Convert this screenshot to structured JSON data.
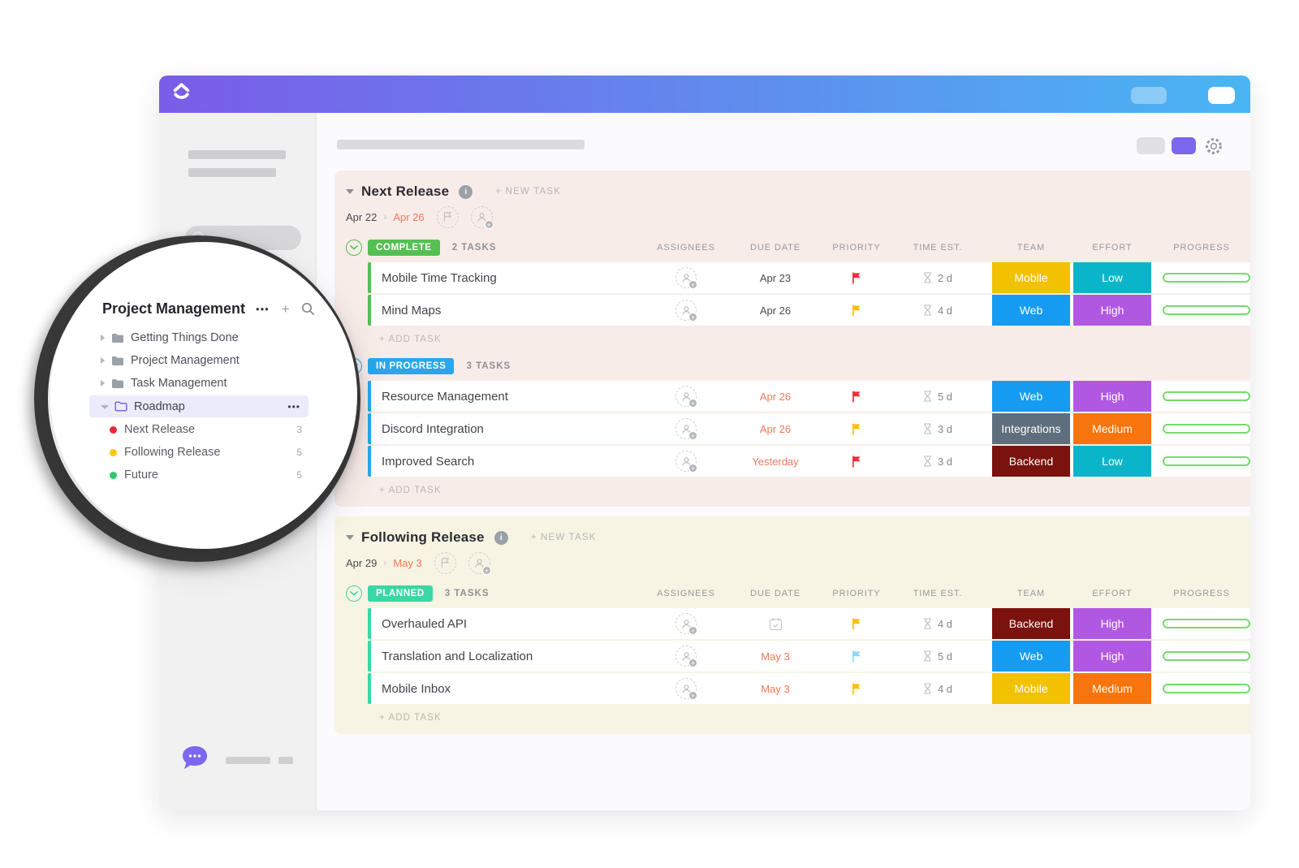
{
  "titlebar": {
    "app": "clickup"
  },
  "toolbar": {
    "columns": [
      "ASSIGNEES",
      "DUE DATE",
      "PRIORITY",
      "TIME EST.",
      "TEAM",
      "EFFORT",
      "PROGRESS"
    ]
  },
  "colors": {
    "gradient_left": "#7a5ce8",
    "gradient_right": "#49b6f3",
    "section1_bg": "#f8ece9",
    "section2_bg": "#f7f4e3",
    "accent_purple": "#7b68ee",
    "overdue_orange": "#f4765a",
    "progress_green": "#77d96e",
    "priority": {
      "red": "#f12c3e",
      "yellow": "#fcc002",
      "blue": "#8ed8f8"
    }
  },
  "magnifier": {
    "title": "Project Management",
    "menu_dots": "•••",
    "plus": "+",
    "folders": [
      "Getting Things Done",
      "Project Management",
      "Task Management"
    ],
    "selected_folder": {
      "label": "Roadmap",
      "menu_dots": "•••",
      "folder_color": "#7b68ee",
      "highlight": "#ecebfb"
    },
    "lists": [
      {
        "label": "Next Release",
        "count": "3",
        "dot_color": "#e8283c"
      },
      {
        "label": "Following Release",
        "count": "5",
        "dot_color": "#fdc800"
      },
      {
        "label": "Future",
        "count": "5",
        "dot_color": "#2bc96d"
      }
    ]
  },
  "sections": [
    {
      "title": "Next Release",
      "new_task_label": "+ NEW TASK",
      "date_start": "Apr 22",
      "date_sep": "›",
      "date_end": "Apr 26",
      "bg": "#f8ece9",
      "groups": [
        {
          "badge": "COMPLETE",
          "badge_color": "#54c053",
          "tasks_label": "2 TASKS",
          "show_headers": true,
          "add_task_label": "+ ADD TASK",
          "rows": [
            {
              "name": "Mobile Time Tracking",
              "due": "Apr 23",
              "due_orange": false,
              "priority": "red",
              "time": "2 d",
              "team": {
                "label": "Mobile",
                "color": "#f2c100"
              },
              "effort": {
                "label": "Low",
                "color": "#0bb5c9"
              }
            },
            {
              "name": "Mind Maps",
              "due": "Apr 26",
              "due_orange": false,
              "priority": "yellow",
              "time": "4 d",
              "team": {
                "label": "Web",
                "color": "#169bf2"
              },
              "effort": {
                "label": "High",
                "color": "#b158e3"
              }
            }
          ]
        },
        {
          "badge": "IN PROGRESS",
          "badge_color": "#29a7ea",
          "tasks_label": "3 TASKS",
          "show_headers": false,
          "add_task_label": "+ ADD TASK",
          "rows": [
            {
              "name": "Resource Management",
              "due": "Apr 26",
              "due_orange": true,
              "priority": "red",
              "time": "5 d",
              "team": {
                "label": "Web",
                "color": "#169bf2"
              },
              "effort": {
                "label": "High",
                "color": "#b158e3"
              }
            },
            {
              "name": "Discord Integration",
              "due": "Apr 26",
              "due_orange": true,
              "priority": "yellow",
              "time": "3 d",
              "team": {
                "label": "Integrations",
                "color": "#5f6e7d"
              },
              "effort": {
                "label": "Medium",
                "color": "#f8740c"
              }
            },
            {
              "name": "Improved Search",
              "due": "Yesterday",
              "due_orange": true,
              "priority": "red",
              "time": "3 d",
              "team": {
                "label": "Backend",
                "color": "#7a120d"
              },
              "effort": {
                "label": "Low",
                "color": "#0bb5c9"
              }
            }
          ]
        }
      ]
    },
    {
      "title": "Following Release",
      "new_task_label": "+ NEW TASK",
      "date_start": "Apr 29",
      "date_sep": "›",
      "date_end": "May 3",
      "bg": "#f7f4e3",
      "groups": [
        {
          "badge": "PLANNED",
          "badge_color": "#3bd6a5",
          "tasks_label": "3 TASKS",
          "show_headers": true,
          "add_task_label": "+ ADD TASK",
          "rows": [
            {
              "name": "Overhauled API",
              "due": "",
              "due_icon": "calendar",
              "due_orange": false,
              "priority": "yellow",
              "time": "4 d",
              "team": {
                "label": "Backend",
                "color": "#7a120d"
              },
              "effort": {
                "label": "High",
                "color": "#b158e3"
              }
            },
            {
              "name": "Translation and Localization",
              "due": "May 3",
              "due_orange": true,
              "priority": "blue",
              "time": "5 d",
              "team": {
                "label": "Web",
                "color": "#169bf2"
              },
              "effort": {
                "label": "High",
                "color": "#b158e3"
              }
            },
            {
              "name": "Mobile Inbox",
              "due": "May 3",
              "due_orange": true,
              "priority": "yellow",
              "time": "4 d",
              "team": {
                "label": "Mobile",
                "color": "#f2c100"
              },
              "effort": {
                "label": "Medium",
                "color": "#f8740c"
              }
            }
          ]
        }
      ]
    }
  ]
}
